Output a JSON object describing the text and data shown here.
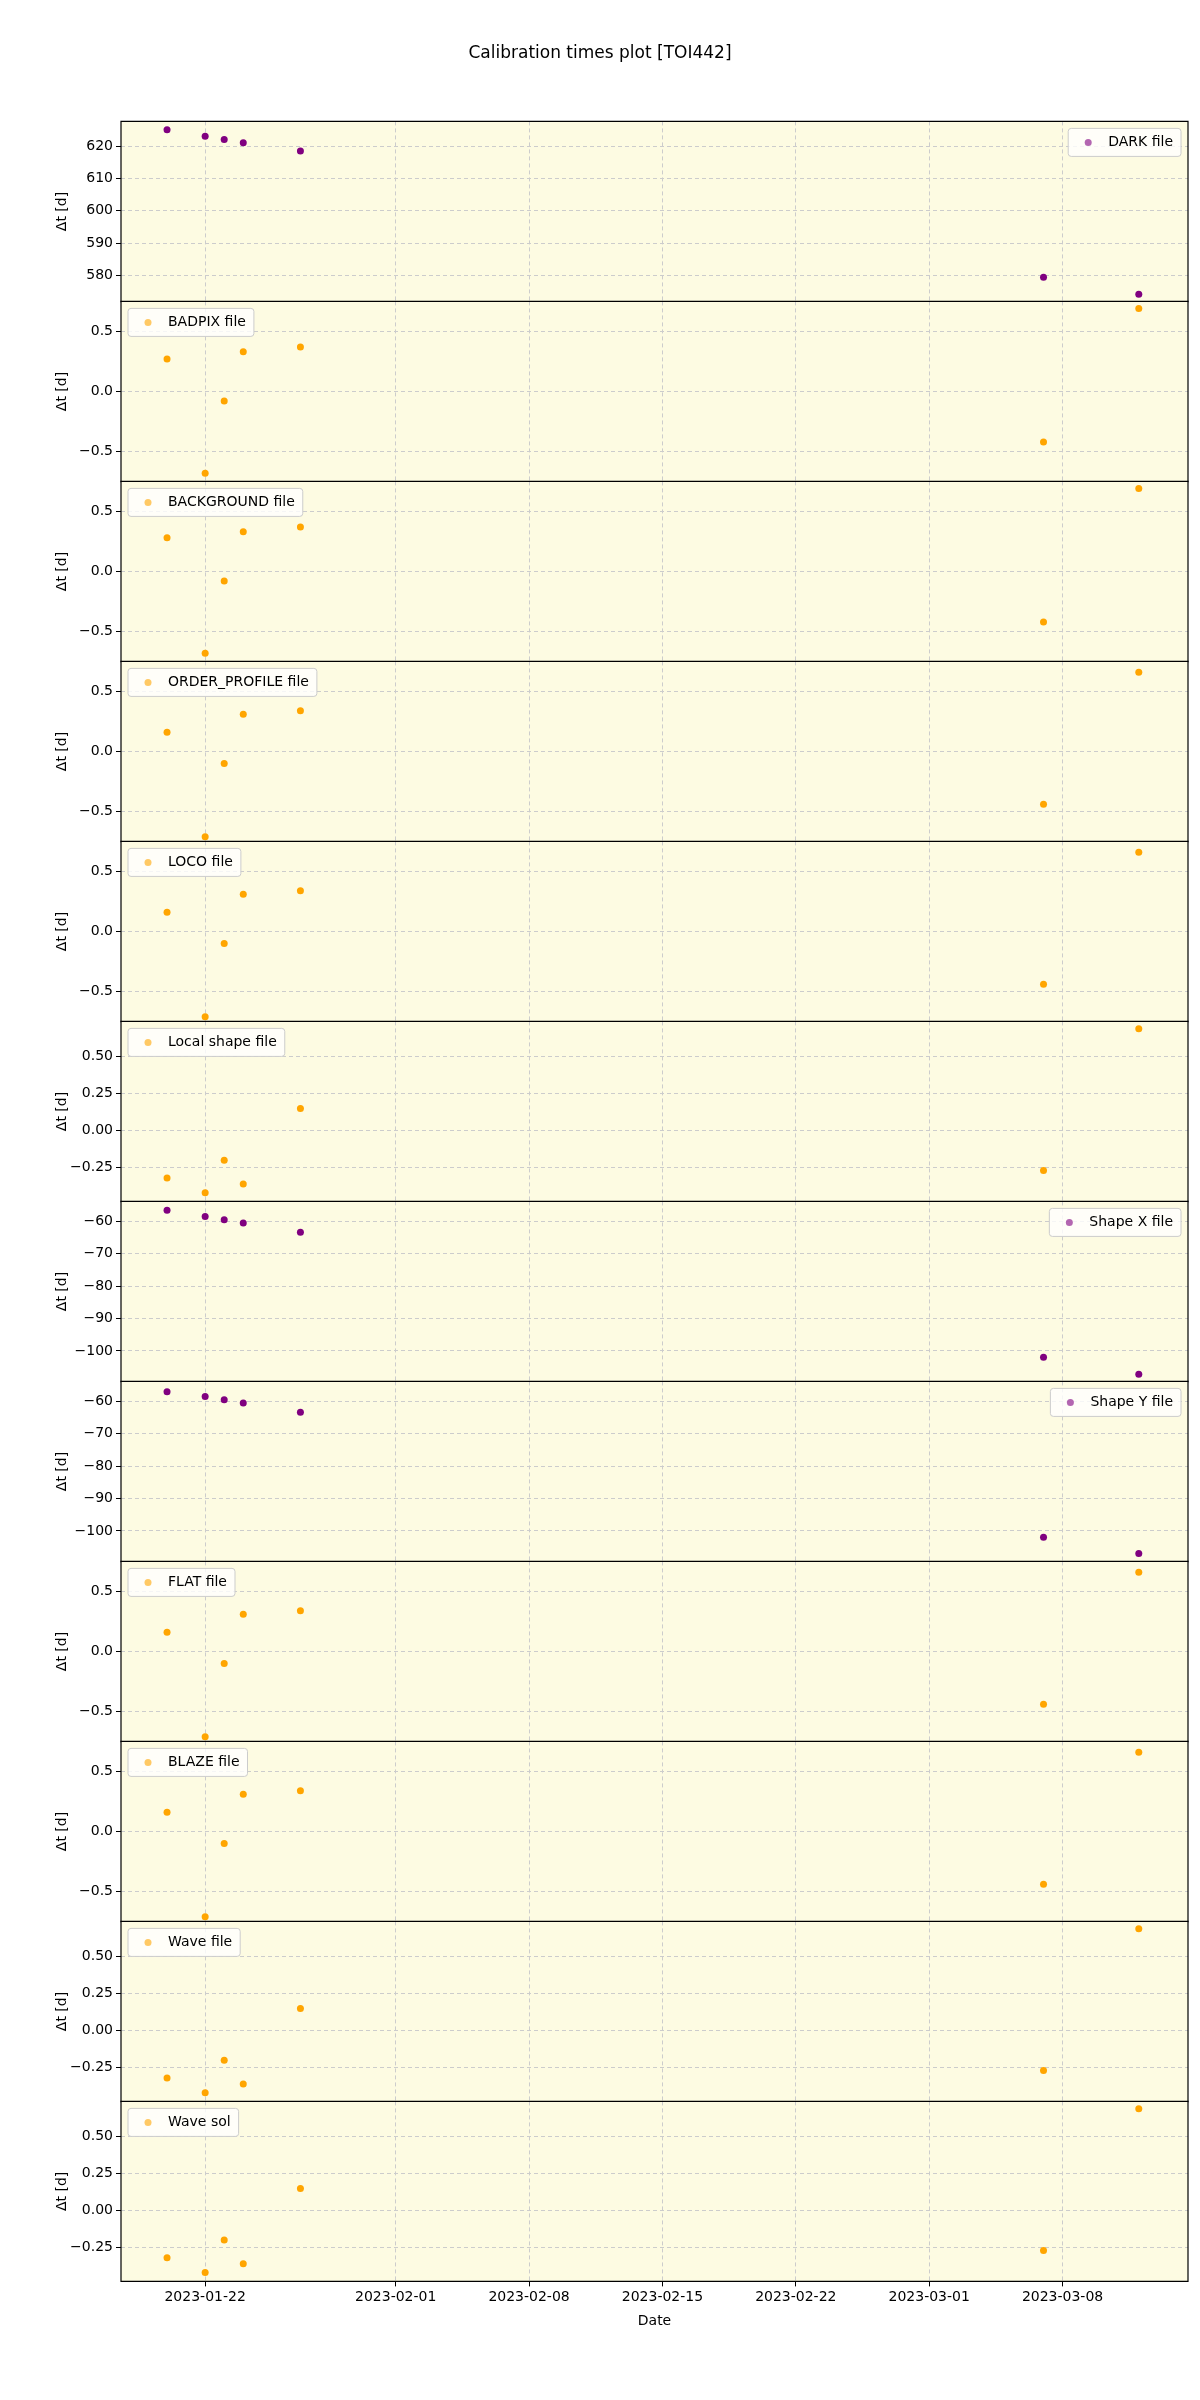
{
  "chart_data": [
    {
      "type": "scatter",
      "title": "Calibration times plot [TOI442]",
      "ylabel": "Δt [d]",
      "x": [
        "2023-01-20",
        "2023-01-22",
        "2023-01-23",
        "2023-01-24",
        "2023-01-27",
        "2023-03-07",
        "2023-03-12"
      ],
      "xlim": [
        "2023-01-17T14:00",
        "2023-03-14T14:00"
      ],
      "xticks": [
        "2023-01-22",
        "2023-02-01",
        "2023-02-08",
        "2023-02-15",
        "2023-02-22",
        "2023-03-01",
        "2023-03-08"
      ],
      "ylim": [
        572,
        627.6
      ],
      "yticks": [
        {
          "value": 580,
          "label": "580"
        },
        {
          "value": 590,
          "label": "590"
        },
        {
          "value": 600,
          "label": "600"
        },
        {
          "value": 610,
          "label": "610"
        },
        {
          "value": 620,
          "label": "620"
        }
      ],
      "tick_labels": "y",
      "grid": true,
      "marker": "circle",
      "legend": "top right",
      "series": [
        {
          "name": "DARK file",
          "color": "#800080",
          "values": [
            625,
            623,
            622,
            621,
            618.5,
            579.5,
            574.3
          ]
        }
      ]
    },
    {
      "type": "scatter",
      "ylabel": "Δt [d]",
      "x": [
        "2023-01-20",
        "2023-01-22",
        "2023-01-23",
        "2023-01-24",
        "2023-01-27",
        "2023-03-07",
        "2023-03-12"
      ],
      "xlim": [
        "2023-01-17T14:00",
        "2023-03-14T14:00"
      ],
      "xticks": [
        "2023-01-22",
        "2023-02-01",
        "2023-02-08",
        "2023-02-15",
        "2023-02-22",
        "2023-03-01",
        "2023-03-08"
      ],
      "ylim": [
        -0.75,
        0.75
      ],
      "yticks": [
        {
          "value": -0.5,
          "label": "−0.5"
        },
        {
          "value": 0,
          "label": "0.0"
        },
        {
          "value": 0.5,
          "label": "0.5"
        }
      ],
      "tick_labels": "y",
      "grid": true,
      "marker": "circle",
      "legend": "top left",
      "series": [
        {
          "name": "BADPIX file",
          "color": "#ffa500",
          "values": [
            0.27,
            -0.68,
            -0.08,
            0.33,
            0.37,
            -0.42,
            0.69
          ]
        }
      ]
    },
    {
      "type": "scatter",
      "ylabel": "Δt [d]",
      "x": [
        "2023-01-20",
        "2023-01-22",
        "2023-01-23",
        "2023-01-24",
        "2023-01-27",
        "2023-03-07",
        "2023-03-12"
      ],
      "xlim": [
        "2023-01-17T14:00",
        "2023-03-14T14:00"
      ],
      "xticks": [
        "2023-01-22",
        "2023-02-01",
        "2023-02-08",
        "2023-02-15",
        "2023-02-22",
        "2023-03-01",
        "2023-03-08"
      ],
      "ylim": [
        -0.75,
        0.75
      ],
      "yticks": [
        {
          "value": -0.5,
          "label": "−0.5"
        },
        {
          "value": 0,
          "label": "0.0"
        },
        {
          "value": 0.5,
          "label": "0.5"
        }
      ],
      "tick_labels": "y",
      "grid": true,
      "marker": "circle",
      "legend": "top left",
      "series": [
        {
          "name": "BACKGROUND file",
          "color": "#ffa500",
          "values": [
            0.28,
            -0.68,
            -0.08,
            0.33,
            0.37,
            -0.42,
            0.69
          ]
        }
      ]
    },
    {
      "type": "scatter",
      "ylabel": "Δt [d]",
      "x": [
        "2023-01-20",
        "2023-01-22",
        "2023-01-23",
        "2023-01-24",
        "2023-01-27",
        "2023-03-07",
        "2023-03-12"
      ],
      "xlim": [
        "2023-01-17T14:00",
        "2023-03-14T14:00"
      ],
      "xticks": [
        "2023-01-22",
        "2023-02-01",
        "2023-02-08",
        "2023-02-15",
        "2023-02-22",
        "2023-03-01",
        "2023-03-08"
      ],
      "ylim": [
        -0.75,
        0.75
      ],
      "yticks": [
        {
          "value": -0.5,
          "label": "−0.5"
        },
        {
          "value": 0,
          "label": "0.0"
        },
        {
          "value": 0.5,
          "label": "0.5"
        }
      ],
      "tick_labels": "y",
      "grid": true,
      "marker": "circle",
      "legend": "top left",
      "series": [
        {
          "name": "ORDER_PROFILE file",
          "color": "#ffa500",
          "values": [
            0.16,
            -0.71,
            -0.1,
            0.31,
            0.34,
            -0.44,
            0.66
          ]
        }
      ]
    },
    {
      "type": "scatter",
      "ylabel": "Δt [d]",
      "x": [
        "2023-01-20",
        "2023-01-22",
        "2023-01-23",
        "2023-01-24",
        "2023-01-27",
        "2023-03-07",
        "2023-03-12"
      ],
      "xlim": [
        "2023-01-17T14:00",
        "2023-03-14T14:00"
      ],
      "xticks": [
        "2023-01-22",
        "2023-02-01",
        "2023-02-08",
        "2023-02-15",
        "2023-02-22",
        "2023-03-01",
        "2023-03-08"
      ],
      "ylim": [
        -0.75,
        0.75
      ],
      "yticks": [
        {
          "value": -0.5,
          "label": "−0.5"
        },
        {
          "value": 0,
          "label": "0.0"
        },
        {
          "value": 0.5,
          "label": "0.5"
        }
      ],
      "tick_labels": "y",
      "grid": true,
      "marker": "circle",
      "legend": "top left",
      "series": [
        {
          "name": "LOCO file",
          "color": "#ffa500",
          "values": [
            0.16,
            -0.71,
            -0.1,
            0.31,
            0.34,
            -0.44,
            0.66
          ]
        }
      ]
    },
    {
      "type": "scatter",
      "ylabel": "Δt [d]",
      "x": [
        "2023-01-20",
        "2023-01-22",
        "2023-01-23",
        "2023-01-24",
        "2023-01-27",
        "2023-03-07",
        "2023-03-12"
      ],
      "xlim": [
        "2023-01-17T14:00",
        "2023-03-14T14:00"
      ],
      "xticks": [
        "2023-01-22",
        "2023-02-01",
        "2023-02-08",
        "2023-02-15",
        "2023-02-22",
        "2023-03-01",
        "2023-03-08"
      ],
      "ylim": [
        -0.48,
        0.74
      ],
      "yticks": [
        {
          "value": -0.25,
          "label": "−0.25"
        },
        {
          "value": 0,
          "label": "0.00"
        },
        {
          "value": 0.25,
          "label": "0.25"
        },
        {
          "value": 0.5,
          "label": "0.50"
        }
      ],
      "tick_labels": "y",
      "grid": true,
      "marker": "circle",
      "legend": "top left",
      "series": [
        {
          "name": "Local shape file",
          "color": "#ffa500",
          "values": [
            -0.32,
            -0.42,
            -0.2,
            -0.36,
            0.15,
            -0.27,
            0.69
          ]
        }
      ]
    },
    {
      "type": "scatter",
      "ylabel": "Δt [d]",
      "x": [
        "2023-01-20",
        "2023-01-22",
        "2023-01-23",
        "2023-01-24",
        "2023-01-27",
        "2023-03-07",
        "2023-03-12"
      ],
      "xlim": [
        "2023-01-17T14:00",
        "2023-03-14T14:00"
      ],
      "xticks": [
        "2023-01-22",
        "2023-02-01",
        "2023-02-08",
        "2023-02-15",
        "2023-02-22",
        "2023-03-01",
        "2023-03-08"
      ],
      "ylim": [
        -109.5,
        -53.8
      ],
      "yticks": [
        {
          "value": -100,
          "label": "−100"
        },
        {
          "value": -90,
          "label": "−90"
        },
        {
          "value": -80,
          "label": "−80"
        },
        {
          "value": -70,
          "label": "−70"
        },
        {
          "value": -60,
          "label": "−60"
        }
      ],
      "tick_labels": "y",
      "grid": true,
      "marker": "circle",
      "legend": "top right",
      "series": [
        {
          "name": "Shape X file",
          "color": "#800080",
          "values": [
            -56.5,
            -58.5,
            -59.5,
            -60.5,
            -63.3,
            -102,
            -107.2
          ]
        }
      ]
    },
    {
      "type": "scatter",
      "ylabel": "Δt [d]",
      "x": [
        "2023-01-20",
        "2023-01-22",
        "2023-01-23",
        "2023-01-24",
        "2023-01-27",
        "2023-03-07",
        "2023-03-12"
      ],
      "xlim": [
        "2023-01-17T14:00",
        "2023-03-14T14:00"
      ],
      "xticks": [
        "2023-01-22",
        "2023-02-01",
        "2023-02-08",
        "2023-02-15",
        "2023-02-22",
        "2023-03-01",
        "2023-03-08"
      ],
      "ylim": [
        -109.5,
        -53.8
      ],
      "yticks": [
        {
          "value": -100,
          "label": "−100"
        },
        {
          "value": -90,
          "label": "−90"
        },
        {
          "value": -80,
          "label": "−80"
        },
        {
          "value": -70,
          "label": "−70"
        },
        {
          "value": -60,
          "label": "−60"
        }
      ],
      "tick_labels": "y",
      "grid": true,
      "marker": "circle",
      "legend": "top right",
      "series": [
        {
          "name": "Shape Y file",
          "color": "#800080",
          "values": [
            -57,
            -58.5,
            -59.5,
            -60.5,
            -63.3,
            -102,
            -107
          ]
        }
      ]
    },
    {
      "type": "scatter",
      "ylabel": "Δt [d]",
      "x": [
        "2023-01-20",
        "2023-01-22",
        "2023-01-23",
        "2023-01-24",
        "2023-01-27",
        "2023-03-07",
        "2023-03-12"
      ],
      "xlim": [
        "2023-01-17T14:00",
        "2023-03-14T14:00"
      ],
      "xticks": [
        "2023-01-22",
        "2023-02-01",
        "2023-02-08",
        "2023-02-15",
        "2023-02-22",
        "2023-03-01",
        "2023-03-08"
      ],
      "ylim": [
        -0.75,
        0.75
      ],
      "yticks": [
        {
          "value": -0.5,
          "label": "−0.5"
        },
        {
          "value": 0,
          "label": "0.0"
        },
        {
          "value": 0.5,
          "label": "0.5"
        }
      ],
      "tick_labels": "y",
      "grid": true,
      "marker": "circle",
      "legend": "top left",
      "series": [
        {
          "name": "FLAT file",
          "color": "#ffa500",
          "values": [
            0.16,
            -0.71,
            -0.1,
            0.31,
            0.34,
            -0.44,
            0.66
          ]
        }
      ]
    },
    {
      "type": "scatter",
      "ylabel": "Δt [d]",
      "x": [
        "2023-01-20",
        "2023-01-22",
        "2023-01-23",
        "2023-01-24",
        "2023-01-27",
        "2023-03-07",
        "2023-03-12"
      ],
      "xlim": [
        "2023-01-17T14:00",
        "2023-03-14T14:00"
      ],
      "xticks": [
        "2023-01-22",
        "2023-02-01",
        "2023-02-08",
        "2023-02-15",
        "2023-02-22",
        "2023-03-01",
        "2023-03-08"
      ],
      "ylim": [
        -0.75,
        0.75
      ],
      "yticks": [
        {
          "value": -0.5,
          "label": "−0.5"
        },
        {
          "value": 0,
          "label": "0.0"
        },
        {
          "value": 0.5,
          "label": "0.5"
        }
      ],
      "tick_labels": "y",
      "grid": true,
      "marker": "circle",
      "legend": "top left",
      "series": [
        {
          "name": "BLAZE file",
          "color": "#ffa500",
          "values": [
            0.16,
            -0.71,
            -0.1,
            0.31,
            0.34,
            -0.44,
            0.66
          ]
        }
      ]
    },
    {
      "type": "scatter",
      "ylabel": "Δt [d]",
      "x": [
        "2023-01-20",
        "2023-01-22",
        "2023-01-23",
        "2023-01-24",
        "2023-01-27",
        "2023-03-07",
        "2023-03-12"
      ],
      "xlim": [
        "2023-01-17T14:00",
        "2023-03-14T14:00"
      ],
      "xticks": [
        "2023-01-22",
        "2023-02-01",
        "2023-02-08",
        "2023-02-15",
        "2023-02-22",
        "2023-03-01",
        "2023-03-08"
      ],
      "ylim": [
        -0.48,
        0.74
      ],
      "yticks": [
        {
          "value": -0.25,
          "label": "−0.25"
        },
        {
          "value": 0,
          "label": "0.00"
        },
        {
          "value": 0.25,
          "label": "0.25"
        },
        {
          "value": 0.5,
          "label": "0.50"
        }
      ],
      "tick_labels": "y",
      "grid": true,
      "marker": "circle",
      "legend": "top left",
      "series": [
        {
          "name": "Wave file",
          "color": "#ffa500",
          "values": [
            -0.32,
            -0.42,
            -0.2,
            -0.36,
            0.15,
            -0.27,
            0.69
          ]
        }
      ]
    },
    {
      "type": "scatter",
      "ylabel": "Δt [d]",
      "xlabel": "Date",
      "x": [
        "2023-01-20",
        "2023-01-22",
        "2023-01-23",
        "2023-01-24",
        "2023-01-27",
        "2023-03-07",
        "2023-03-12"
      ],
      "xlim": [
        "2023-01-17T14:00",
        "2023-03-14T14:00"
      ],
      "xticks": [
        "2023-01-22",
        "2023-02-01",
        "2023-02-08",
        "2023-02-15",
        "2023-02-22",
        "2023-03-01",
        "2023-03-08"
      ],
      "ylim": [
        -0.48,
        0.74
      ],
      "yticks": [
        {
          "value": -0.25,
          "label": "−0.25"
        },
        {
          "value": 0,
          "label": "0.00"
        },
        {
          "value": 0.25,
          "label": "0.25"
        },
        {
          "value": 0.5,
          "label": "0.50"
        }
      ],
      "grid": true,
      "marker": "circle",
      "legend": "top left",
      "series": [
        {
          "name": "Wave sol",
          "color": "#ffa500",
          "values": [
            -0.32,
            -0.42,
            -0.2,
            -0.36,
            0.15,
            -0.27,
            0.69
          ]
        }
      ]
    }
  ]
}
